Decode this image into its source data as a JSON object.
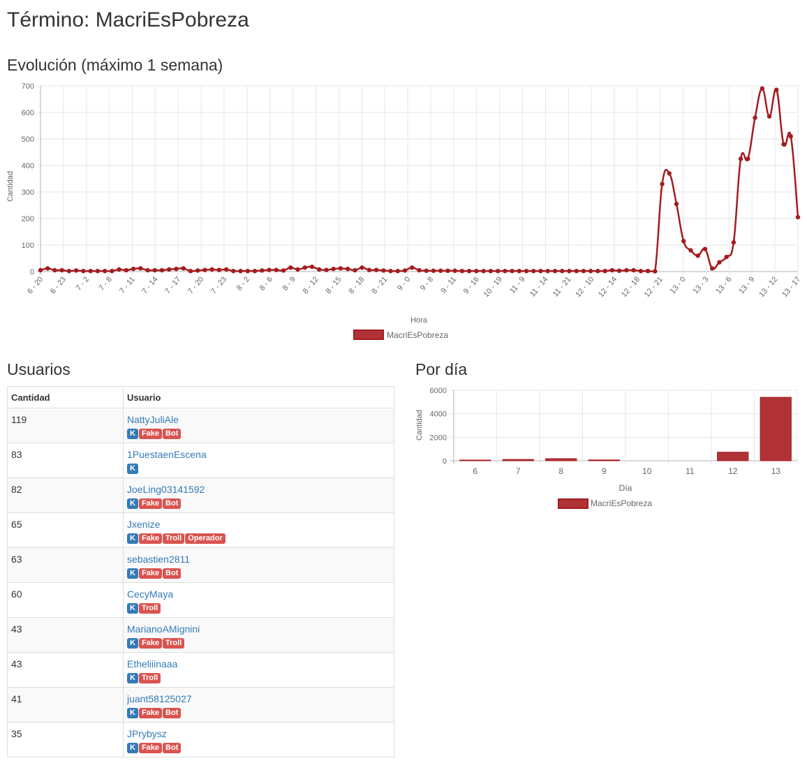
{
  "page": {
    "title": "Término: MacriEsPobreza",
    "evolution_title": "Evolución (máximo 1 semana)",
    "users_title": "Usuarios",
    "daily_title": "Por día"
  },
  "colors": {
    "series": "#a31c1f",
    "series_fill": "#b03236",
    "link": "#337ab7",
    "label_k": "#337ab7",
    "label_red": "#d9534f"
  },
  "users": {
    "headers": [
      "Cantidad",
      "Usuario"
    ],
    "rows": [
      {
        "count": "119",
        "name": "NattyJuliAle",
        "labels": [
          "K",
          "Fake",
          "Bot"
        ]
      },
      {
        "count": "83",
        "name": "1PuestaenEscena",
        "labels": [
          "K"
        ]
      },
      {
        "count": "82",
        "name": "JoeLing03141592",
        "labels": [
          "K",
          "Fake",
          "Bot"
        ]
      },
      {
        "count": "65",
        "name": "Jxenize",
        "labels": [
          "K",
          "Fake",
          "Troll",
          "Operador"
        ]
      },
      {
        "count": "63",
        "name": "sebastien2811",
        "labels": [
          "K",
          "Fake",
          "Bot"
        ]
      },
      {
        "count": "60",
        "name": "CecyMaya",
        "labels": [
          "K",
          "Troll"
        ]
      },
      {
        "count": "43",
        "name": "MarianoAMignini",
        "labels": [
          "K",
          "Fake",
          "Troll"
        ]
      },
      {
        "count": "43",
        "name": "Etheliiinaaa",
        "labels": [
          "K",
          "Troll"
        ]
      },
      {
        "count": "41",
        "name": "juant58125027",
        "labels": [
          "K",
          "Fake",
          "Bot"
        ]
      },
      {
        "count": "35",
        "name": "JPrybysz",
        "labels": [
          "K",
          "Fake",
          "Bot"
        ]
      }
    ]
  },
  "chart_data": [
    {
      "type": "line",
      "title": "",
      "xlabel": "Hora",
      "ylabel": "Cantidad",
      "ylim": [
        0,
        700
      ],
      "yticks": [
        0,
        100,
        200,
        300,
        400,
        500,
        600,
        700
      ],
      "grid": true,
      "legend": "bottom",
      "tick_labels": [
        "6 - 20",
        "6 - 23",
        "7 - 2",
        "7 - 8",
        "7 - 11",
        "7 - 14",
        "7 - 17",
        "7 - 20",
        "7 - 23",
        "8 - 2",
        "8 - 6",
        "8 - 9",
        "8 - 12",
        "8 - 15",
        "8 - 18",
        "8 - 21",
        "9 - 0",
        "9 - 8",
        "9 - 11",
        "9 - 16",
        "10 - 19",
        "11 - 9",
        "11 - 14",
        "11 - 21",
        "12 - 10",
        "12 - 14",
        "12 - 18",
        "12 - 21",
        "13 - 0",
        "13 - 3",
        "13 - 6",
        "13 - 9",
        "13 - 12",
        "13 - 17"
      ],
      "series": [
        {
          "name": "MacriEsPobreza",
          "values": [
            5,
            12,
            5,
            5,
            2,
            4,
            2,
            2,
            2,
            2,
            2,
            8,
            5,
            10,
            12,
            5,
            5,
            5,
            8,
            10,
            12,
            2,
            4,
            6,
            8,
            6,
            8,
            2,
            2,
            2,
            2,
            4,
            6,
            6,
            4,
            15,
            8,
            15,
            18,
            8,
            6,
            10,
            12,
            10,
            5,
            15,
            6,
            6,
            4,
            2,
            2,
            4,
            15,
            5,
            3,
            3,
            3,
            3,
            3,
            2,
            2,
            2,
            2,
            2,
            2,
            2,
            2,
            2,
            2,
            2,
            2,
            2,
            2,
            2,
            2,
            2,
            2,
            2,
            2,
            2,
            5,
            3,
            5,
            5,
            2,
            2,
            1,
            330,
            370,
            255,
            115,
            80,
            60,
            85,
            12,
            35,
            55,
            110,
            425,
            425,
            580,
            690,
            585,
            685,
            480,
            510,
            205
          ]
        }
      ]
    },
    {
      "type": "bar",
      "title": "",
      "xlabel": "Día",
      "ylabel": "Cantidad",
      "ylim": [
        0,
        6000
      ],
      "yticks": [
        0,
        2000,
        4000,
        6000
      ],
      "grid": true,
      "legend": "bottom",
      "categories": [
        "6",
        "7",
        "8",
        "9",
        "10",
        "11",
        "12",
        "13"
      ],
      "series": [
        {
          "name": "MacriEsPobreza",
          "values": [
            60,
            110,
            180,
            70,
            0,
            0,
            730,
            5400
          ]
        }
      ]
    }
  ]
}
